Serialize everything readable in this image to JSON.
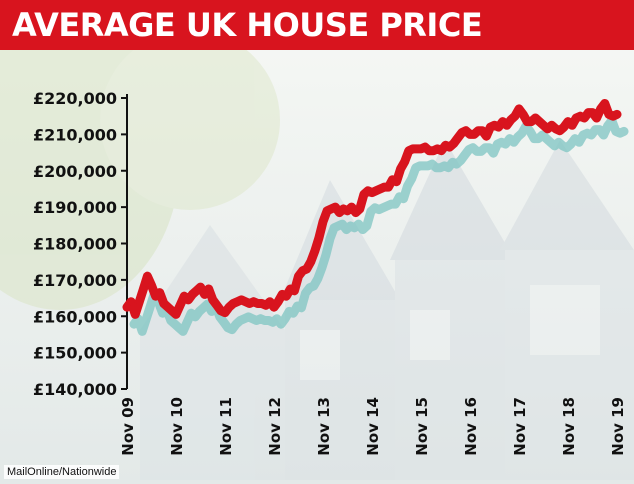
{
  "chart_data": {
    "type": "line",
    "title": "AVERAGE UK HOUSE PRICE",
    "xlabel": "",
    "ylabel": "",
    "ylim": [
      140000,
      220000
    ],
    "yticks": [
      140000,
      150000,
      160000,
      170000,
      180000,
      190000,
      200000,
      210000,
      220000
    ],
    "ytick_labels": [
      "£140,000",
      "£150,000",
      "£160,000",
      "£170,000",
      "£180,000",
      "£190,000",
      "£200,000",
      "£210,000",
      "£220,000"
    ],
    "xlim": [
      2009.833,
      2019.833
    ],
    "xticks": [
      2009.833,
      2010.833,
      2011.833,
      2012.833,
      2013.833,
      2014.833,
      2015.833,
      2016.833,
      2017.833,
      2018.833,
      2019.833
    ],
    "xtick_labels": [
      "Nov 09",
      "Nov 10",
      "Nov 11",
      "Nov 12",
      "Nov 13",
      "Nov 14",
      "Nov 15",
      "Nov 16",
      "Nov 17",
      "Nov 18",
      "Nov 19"
    ],
    "grid": false,
    "colors": {
      "main": "#d8141e",
      "shadow": "#7ec4c2"
    },
    "series": [
      {
        "x": [
          2009.833,
          2009.917,
          2010.0,
          2010.083,
          2010.167,
          2010.25,
          2010.333,
          2010.417,
          2010.5,
          2010.583,
          2010.667,
          2010.75,
          2010.833,
          2010.917,
          2011.0,
          2011.083,
          2011.167,
          2011.25,
          2011.333,
          2011.417,
          2011.5,
          2011.583,
          2011.667,
          2011.75,
          2011.833,
          2011.917,
          2012.0,
          2012.083,
          2012.167,
          2012.25,
          2012.333,
          2012.417,
          2012.5,
          2012.583,
          2012.667,
          2012.75,
          2012.833,
          2012.917,
          2013.0,
          2013.083,
          2013.167,
          2013.25,
          2013.333,
          2013.417,
          2013.5,
          2013.583,
          2013.667,
          2013.75,
          2013.833,
          2013.917,
          2014.0,
          2014.083,
          2014.167,
          2014.25,
          2014.333,
          2014.417,
          2014.5,
          2014.583,
          2014.667,
          2014.75,
          2014.833,
          2014.917,
          2015.0,
          2015.083,
          2015.167,
          2015.25,
          2015.333,
          2015.417,
          2015.5,
          2015.583,
          2015.667,
          2015.75,
          2015.833,
          2015.917,
          2016.0,
          2016.083,
          2016.167,
          2016.25,
          2016.333,
          2016.417,
          2016.5,
          2016.583,
          2016.667,
          2016.75,
          2016.833,
          2016.917,
          2017.0,
          2017.083,
          2017.167,
          2017.25,
          2017.333,
          2017.417,
          2017.5,
          2017.583,
          2017.667,
          2017.75,
          2017.833,
          2017.917,
          2018.0,
          2018.083,
          2018.167,
          2018.25,
          2018.333,
          2018.417,
          2018.5,
          2018.583,
          2018.667,
          2018.75,
          2018.833,
          2018.917,
          2019.0,
          2019.083,
          2019.167,
          2019.25,
          2019.333,
          2019.417,
          2019.5,
          2019.583,
          2019.667,
          2019.75,
          2019.833
        ],
        "values": [
          162500,
          164000,
          160500,
          164000,
          167500,
          171000,
          168500,
          165500,
          166500,
          163500,
          162500,
          161500,
          160500,
          163000,
          165500,
          164500,
          166000,
          167000,
          168000,
          166000,
          167500,
          164500,
          163000,
          161500,
          161000,
          162500,
          163500,
          164000,
          164500,
          164000,
          163500,
          164000,
          163500,
          163500,
          163000,
          164000,
          162500,
          164000,
          166000,
          165500,
          167500,
          167000,
          171000,
          172500,
          173000,
          175000,
          178000,
          181500,
          186000,
          189000,
          189500,
          190000,
          188500,
          189500,
          189000,
          190000,
          188500,
          189500,
          193500,
          194500,
          194000,
          194500,
          195000,
          195500,
          195500,
          197500,
          197000,
          200500,
          202500,
          205500,
          206000,
          206000,
          206000,
          206500,
          205500,
          205500,
          206000,
          205500,
          207000,
          206500,
          207500,
          209000,
          210500,
          211000,
          210000,
          210000,
          211000,
          211000,
          209500,
          212000,
          212500,
          212000,
          213500,
          212500,
          214000,
          215000,
          217000,
          215500,
          213500,
          213500,
          214500,
          213500,
          212500,
          211500,
          212500,
          211500,
          211000,
          212000,
          213500,
          212500,
          214500,
          215000,
          214500,
          216000,
          216000,
          214500,
          217000,
          218500,
          215500,
          215000,
          215500
        ]
      }
    ]
  },
  "credit": "MailOnline/Nationwide"
}
